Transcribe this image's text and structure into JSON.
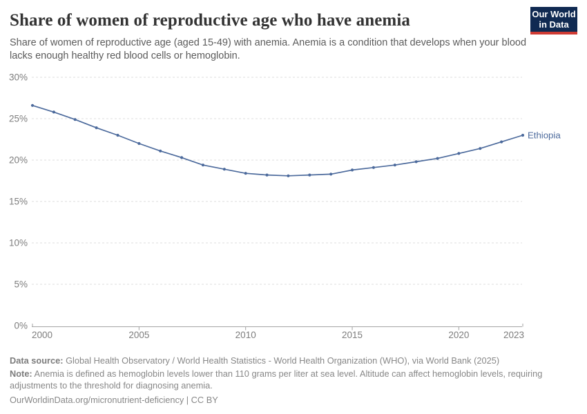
{
  "header": {
    "title": "Share of women of reproductive age who have anemia",
    "subtitle": "Share of women of reproductive age (aged 15-49) with anemia. Anemia is a condition that develops when your blood lacks enough healthy red blood cells or hemoglobin.",
    "logo": {
      "line1": "Our World",
      "line2": "in Data",
      "bg_color": "#102a52",
      "accent_color": "#cf3b34"
    }
  },
  "chart_data": {
    "type": "line",
    "title": "Share of women of reproductive age who have anemia",
    "xlabel": "",
    "ylabel": "",
    "xlim": [
      2000,
      2023
    ],
    "ylim": [
      0,
      30
    ],
    "grid": "horizontal-dashed",
    "legend_position": "end-of-line-label",
    "x_ticks": [
      2000,
      2005,
      2010,
      2015,
      2020,
      2023
    ],
    "y_ticks": [
      0,
      5,
      10,
      15,
      20,
      25,
      30
    ],
    "y_tick_suffix": "%",
    "x": [
      2000,
      2001,
      2002,
      2003,
      2004,
      2005,
      2006,
      2007,
      2008,
      2009,
      2010,
      2011,
      2012,
      2013,
      2014,
      2015,
      2016,
      2017,
      2018,
      2019,
      2020,
      2021,
      2022,
      2023
    ],
    "series": [
      {
        "name": "Ethiopia",
        "color": "#4c6a9c",
        "values": [
          26.6,
          25.8,
          24.9,
          23.9,
          23.0,
          22.0,
          21.1,
          20.3,
          19.4,
          18.9,
          18.4,
          18.2,
          18.1,
          18.2,
          18.3,
          18.8,
          19.1,
          19.4,
          19.8,
          20.2,
          20.8,
          21.4,
          22.2,
          23.0
        ]
      }
    ],
    "colors": {
      "gridline": "#dcdcdc",
      "axis": "#a3a3a3",
      "tick_label": "#7d7d7d"
    }
  },
  "footer": {
    "data_source_label": "Data source:",
    "data_source": " Global Health Observatory / World Health Statistics - World Health Organization (WHO), via World Bank (2025)",
    "note_label": "Note:",
    "note": " Anemia is defined as hemoglobin levels lower than 110 grams per liter at sea level. Altitude can affect hemoglobin levels, requiring adjustments to the threshold for diagnosing anemia.",
    "link": "OurWorldinData.org/micronutrient-deficiency | CC BY"
  }
}
